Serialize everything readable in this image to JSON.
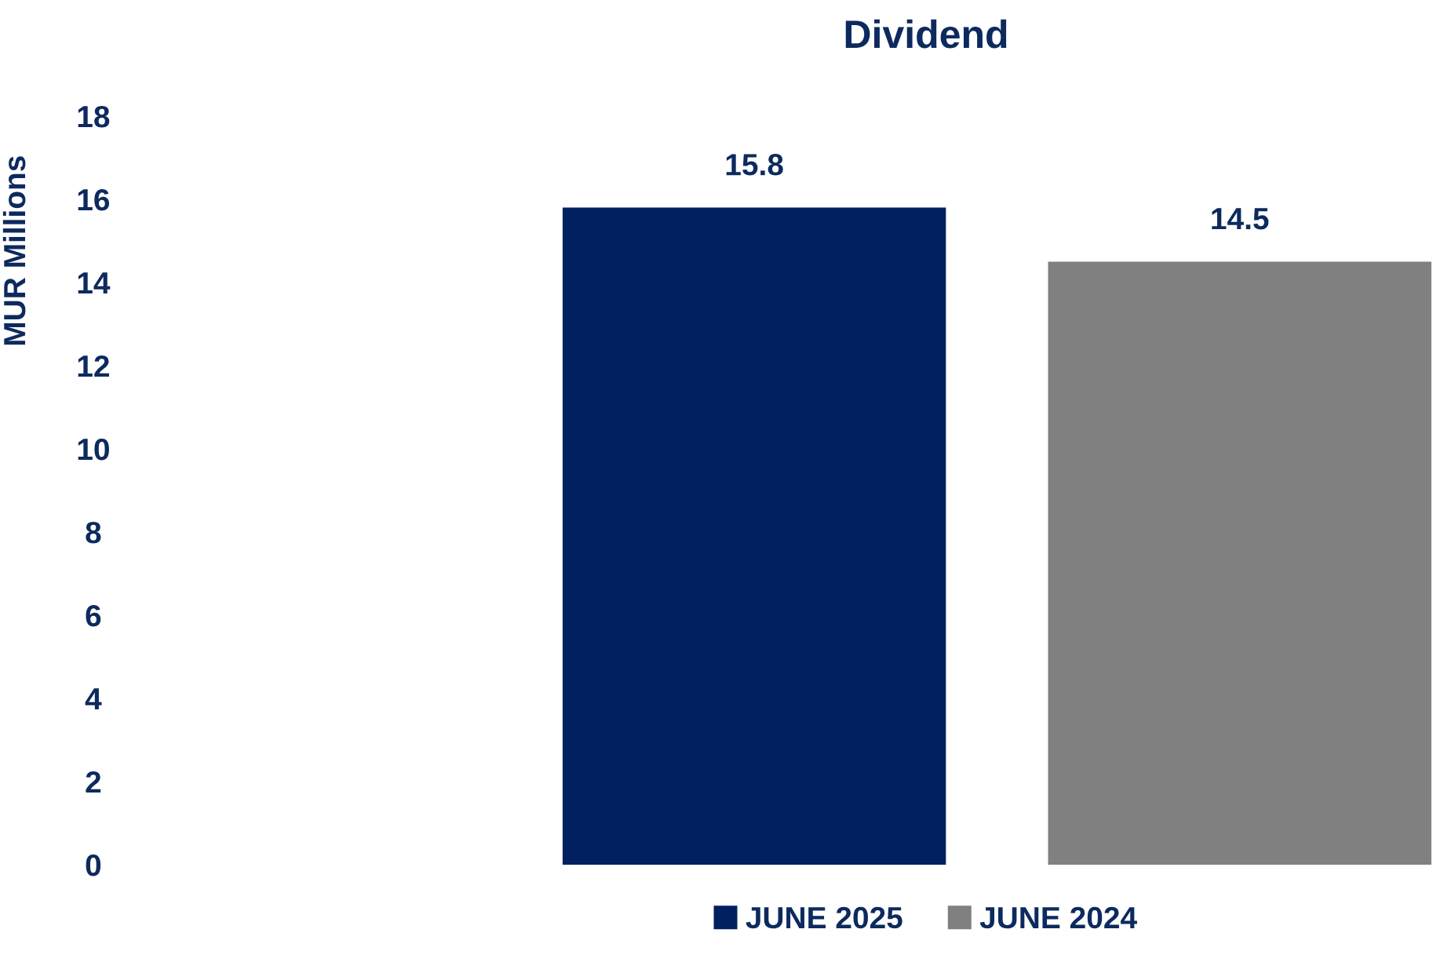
{
  "chart_data": {
    "type": "bar",
    "title": "Dividend",
    "ylabel": "MUR Millions",
    "categories": [
      null
    ],
    "series": [
      {
        "name": "JUNE 2025",
        "color": "#002060",
        "values": [
          15.8
        ]
      },
      {
        "name": "JUNE 2024",
        "color": "#808080",
        "values": [
          14.5
        ]
      }
    ],
    "ylim": [
      0,
      18
    ],
    "yticks": [
      0,
      2,
      4,
      6,
      8,
      10,
      12,
      14,
      16,
      18
    ],
    "data_labels": true,
    "legend": "bottom",
    "grid": false
  }
}
